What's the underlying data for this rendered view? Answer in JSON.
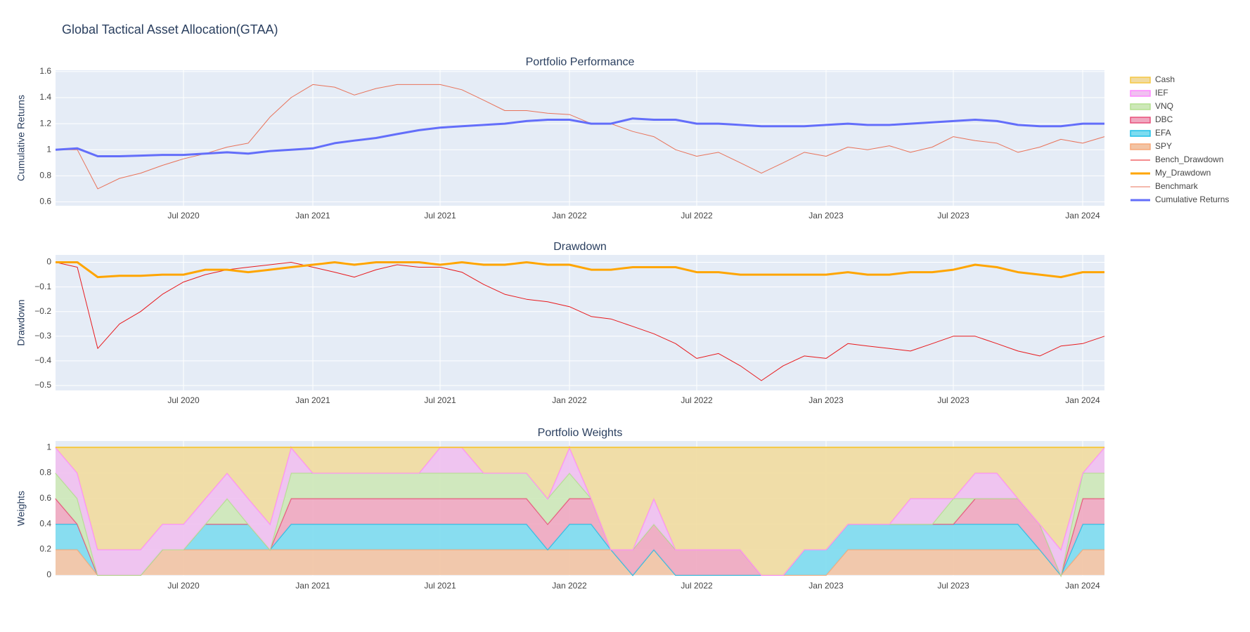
{
  "title": "Global Tactical Asset Allocation(GTAA)",
  "legend": "right",
  "chart_data": [
    {
      "type": "line",
      "title": "Portfolio Performance",
      "ylabel": "Cumulative Returns",
      "grid": true,
      "x": [
        "2020-01",
        "2020-02",
        "2020-03",
        "2020-04",
        "2020-05",
        "2020-06",
        "2020-07",
        "2020-08",
        "2020-09",
        "2020-10",
        "2020-11",
        "2020-12",
        "2021-01",
        "2021-02",
        "2021-03",
        "2021-04",
        "2021-05",
        "2021-06",
        "2021-07",
        "2021-08",
        "2021-09",
        "2021-10",
        "2021-11",
        "2021-12",
        "2022-01",
        "2022-02",
        "2022-03",
        "2022-04",
        "2022-05",
        "2022-06",
        "2022-07",
        "2022-08",
        "2022-09",
        "2022-10",
        "2022-11",
        "2022-12",
        "2023-01",
        "2023-02",
        "2023-03",
        "2023-04",
        "2023-05",
        "2023-06",
        "2023-07",
        "2023-08",
        "2023-09",
        "2023-10",
        "2023-11",
        "2023-12",
        "2024-01",
        "2024-02"
      ],
      "xlim": [
        "2020-01",
        "2024-02"
      ],
      "xticks": [
        {
          "value": "2020-07",
          "label": "Jul 2020"
        },
        {
          "value": "2021-01",
          "label": "Jan 2021"
        },
        {
          "value": "2021-07",
          "label": "Jul 2021"
        },
        {
          "value": "2022-01",
          "label": "Jan 2022"
        },
        {
          "value": "2022-07",
          "label": "Jul 2022"
        },
        {
          "value": "2023-01",
          "label": "Jan 2023"
        },
        {
          "value": "2023-07",
          "label": "Jul 2023"
        },
        {
          "value": "2024-01",
          "label": "Jan 2024"
        }
      ],
      "ylim": [
        0.57,
        1.61
      ],
      "yticks": [
        0.6,
        0.8,
        1,
        1.2,
        1.4,
        1.6
      ],
      "series": [
        {
          "name": "Benchmark",
          "color": "#e8735a",
          "width": 1,
          "values": [
            1.0,
            1.0,
            0.7,
            0.78,
            0.82,
            0.88,
            0.93,
            0.97,
            1.02,
            1.05,
            1.25,
            1.4,
            1.5,
            1.48,
            1.42,
            1.47,
            1.5,
            1.5,
            1.5,
            1.46,
            1.38,
            1.3,
            1.3,
            1.28,
            1.27,
            1.2,
            1.2,
            1.14,
            1.1,
            1.0,
            0.95,
            0.98,
            0.9,
            0.82,
            0.9,
            0.98,
            0.95,
            1.02,
            1.0,
            1.03,
            0.98,
            1.02,
            1.1,
            1.07,
            1.05,
            0.98,
            1.02,
            1.08,
            1.05,
            1.1
          ]
        },
        {
          "name": "Cumulative Returns",
          "color": "#636efa",
          "width": 3,
          "values": [
            1.0,
            1.01,
            0.95,
            0.95,
            0.955,
            0.96,
            0.96,
            0.97,
            0.98,
            0.97,
            0.99,
            1.0,
            1.01,
            1.05,
            1.07,
            1.09,
            1.12,
            1.15,
            1.17,
            1.18,
            1.19,
            1.2,
            1.22,
            1.23,
            1.23,
            1.2,
            1.2,
            1.24,
            1.23,
            1.23,
            1.2,
            1.2,
            1.19,
            1.18,
            1.18,
            1.18,
            1.19,
            1.2,
            1.19,
            1.19,
            1.2,
            1.21,
            1.22,
            1.23,
            1.22,
            1.19,
            1.18,
            1.18,
            1.2,
            1.2
          ]
        }
      ]
    },
    {
      "type": "line",
      "title": "Drawdown",
      "ylabel": "Drawdown",
      "grid": true,
      "x": [
        "2020-01",
        "2020-02",
        "2020-03",
        "2020-04",
        "2020-05",
        "2020-06",
        "2020-07",
        "2020-08",
        "2020-09",
        "2020-10",
        "2020-11",
        "2020-12",
        "2021-01",
        "2021-02",
        "2021-03",
        "2021-04",
        "2021-05",
        "2021-06",
        "2021-07",
        "2021-08",
        "2021-09",
        "2021-10",
        "2021-11",
        "2021-12",
        "2022-01",
        "2022-02",
        "2022-03",
        "2022-04",
        "2022-05",
        "2022-06",
        "2022-07",
        "2022-08",
        "2022-09",
        "2022-10",
        "2022-11",
        "2022-12",
        "2023-01",
        "2023-02",
        "2023-03",
        "2023-04",
        "2023-05",
        "2023-06",
        "2023-07",
        "2023-08",
        "2023-09",
        "2023-10",
        "2023-11",
        "2023-12",
        "2024-01",
        "2024-02"
      ],
      "xlim": [
        "2020-01",
        "2024-02"
      ],
      "xticks": [
        {
          "value": "2020-07",
          "label": "Jul 2020"
        },
        {
          "value": "2021-01",
          "label": "Jan 2021"
        },
        {
          "value": "2021-07",
          "label": "Jul 2021"
        },
        {
          "value": "2022-01",
          "label": "Jan 2022"
        },
        {
          "value": "2022-07",
          "label": "Jul 2022"
        },
        {
          "value": "2023-01",
          "label": "Jan 2023"
        },
        {
          "value": "2023-07",
          "label": "Jul 2023"
        },
        {
          "value": "2024-01",
          "label": "Jan 2024"
        }
      ],
      "ylim": [
        -0.52,
        0.03
      ],
      "yticks": [
        0,
        {
          "value": -0.1,
          "label": "−0.1"
        },
        {
          "value": -0.2,
          "label": "−0.2"
        },
        {
          "value": -0.3,
          "label": "−0.3"
        },
        {
          "value": -0.4,
          "label": "−0.4"
        },
        {
          "value": -0.5,
          "label": "−0.5"
        }
      ],
      "series": [
        {
          "name": "Bench_Drawdown",
          "color": "#e8191c",
          "width": 1,
          "values": [
            0,
            -0.02,
            -0.35,
            -0.25,
            -0.2,
            -0.13,
            -0.08,
            -0.05,
            -0.03,
            -0.02,
            -0.01,
            0,
            -0.02,
            -0.04,
            -0.06,
            -0.03,
            -0.01,
            -0.02,
            -0.02,
            -0.04,
            -0.09,
            -0.13,
            -0.15,
            -0.16,
            -0.18,
            -0.22,
            -0.23,
            -0.26,
            -0.29,
            -0.33,
            -0.39,
            -0.37,
            -0.42,
            -0.48,
            -0.42,
            -0.38,
            -0.39,
            -0.33,
            -0.34,
            -0.35,
            -0.36,
            -0.33,
            -0.3,
            -0.3,
            -0.33,
            -0.36,
            -0.38,
            -0.34,
            -0.33,
            -0.3
          ]
        },
        {
          "name": "My_Drawdown",
          "color": "#ffa500",
          "width": 3,
          "values": [
            0,
            0,
            -0.06,
            -0.055,
            -0.055,
            -0.05,
            -0.05,
            -0.03,
            -0.03,
            -0.04,
            -0.03,
            -0.02,
            -0.01,
            0,
            -0.01,
            0,
            0,
            0,
            -0.01,
            0,
            -0.01,
            -0.01,
            0,
            -0.01,
            -0.01,
            -0.03,
            -0.03,
            -0.02,
            -0.02,
            -0.02,
            -0.04,
            -0.04,
            -0.05,
            -0.05,
            -0.05,
            -0.05,
            -0.05,
            -0.04,
            -0.05,
            -0.05,
            -0.04,
            -0.04,
            -0.03,
            -0.01,
            -0.02,
            -0.04,
            -0.05,
            -0.06,
            -0.04,
            -0.04
          ]
        }
      ]
    },
    {
      "type": "stacked_area",
      "title": "Portfolio Weights",
      "ylabel": "Weights",
      "grid": true,
      "x": [
        "2020-01",
        "2020-02",
        "2020-03",
        "2020-04",
        "2020-05",
        "2020-06",
        "2020-07",
        "2020-08",
        "2020-09",
        "2020-10",
        "2020-11",
        "2020-12",
        "2021-01",
        "2021-02",
        "2021-03",
        "2021-04",
        "2021-05",
        "2021-06",
        "2021-07",
        "2021-08",
        "2021-09",
        "2021-10",
        "2021-11",
        "2021-12",
        "2022-01",
        "2022-02",
        "2022-03",
        "2022-04",
        "2022-05",
        "2022-06",
        "2022-07",
        "2022-08",
        "2022-09",
        "2022-10",
        "2022-11",
        "2022-12",
        "2023-01",
        "2023-02",
        "2023-03",
        "2023-04",
        "2023-05",
        "2023-06",
        "2023-07",
        "2023-08",
        "2023-09",
        "2023-10",
        "2023-11",
        "2023-12",
        "2024-01",
        "2024-02"
      ],
      "xlim": [
        "2020-01",
        "2024-02"
      ],
      "xticks": [
        {
          "value": "2020-07",
          "label": "Jul 2020"
        },
        {
          "value": "2021-01",
          "label": "Jan 2021"
        },
        {
          "value": "2021-07",
          "label": "Jul 2021"
        },
        {
          "value": "2022-01",
          "label": "Jan 2022"
        },
        {
          "value": "2022-07",
          "label": "Jul 2022"
        },
        {
          "value": "2023-01",
          "label": "Jan 2023"
        },
        {
          "value": "2023-07",
          "label": "Jul 2023"
        },
        {
          "value": "2024-01",
          "label": "Jan 2024"
        }
      ],
      "ylim": [
        -0.006,
        1.05
      ],
      "yticks": [
        0,
        0.2,
        0.4,
        0.6,
        0.8,
        1
      ],
      "series": [
        {
          "name": "SPY",
          "color": "#f8a878",
          "fill": "#f2c4a4",
          "values": [
            0.2,
            0.2,
            0,
            0,
            0,
            0.2,
            0.2,
            0.2,
            0.2,
            0.2,
            0.2,
            0.2,
            0.2,
            0.2,
            0.2,
            0.2,
            0.2,
            0.2,
            0.2,
            0.2,
            0.2,
            0.2,
            0.2,
            0.2,
            0.2,
            0.2,
            0.2,
            0,
            0.2,
            0,
            0,
            0,
            0,
            0,
            0,
            0,
            0,
            0.2,
            0.2,
            0.2,
            0.2,
            0.2,
            0.2,
            0.2,
            0.2,
            0.2,
            0.2,
            0,
            0.2,
            0.2
          ]
        },
        {
          "name": "EFA",
          "color": "#20c0e8",
          "fill": "#7ddcf0",
          "values": [
            0.2,
            0.2,
            0,
            0,
            0,
            0,
            0,
            0.2,
            0.2,
            0.2,
            0,
            0.2,
            0.2,
            0.2,
            0.2,
            0.2,
            0.2,
            0.2,
            0.2,
            0.2,
            0.2,
            0.2,
            0.2,
            0,
            0.2,
            0.2,
            0,
            0,
            0,
            0,
            0,
            0,
            0,
            0,
            0,
            0.2,
            0.2,
            0.2,
            0.2,
            0.2,
            0.2,
            0.2,
            0.2,
            0.2,
            0.2,
            0.2,
            0,
            0,
            0.2,
            0.2
          ]
        },
        {
          "name": "DBC",
          "color": "#e8507a",
          "fill": "#f0a8c0",
          "values": [
            0.2,
            0,
            0,
            0,
            0,
            0,
            0,
            0,
            0,
            0,
            0,
            0.2,
            0.2,
            0.2,
            0.2,
            0.2,
            0.2,
            0.2,
            0.2,
            0.2,
            0.2,
            0.2,
            0.2,
            0.2,
            0.2,
            0.2,
            0,
            0.2,
            0.2,
            0.2,
            0.2,
            0.2,
            0.2,
            0,
            0,
            0,
            0,
            0,
            0,
            0,
            0,
            0,
            0,
            0.2,
            0.2,
            0.2,
            0.2,
            0,
            0.2,
            0.2
          ]
        },
        {
          "name": "VNQ",
          "color": "#b3e08f",
          "fill": "#cde8b8",
          "values": [
            0.2,
            0.2,
            0,
            0,
            0,
            0,
            0,
            0,
            0.2,
            0,
            0,
            0.2,
            0.2,
            0.2,
            0.2,
            0.2,
            0.2,
            0.2,
            0.2,
            0.2,
            0.2,
            0.2,
            0.2,
            0.2,
            0.2,
            0,
            0,
            0,
            0,
            0,
            0,
            0,
            0,
            0,
            0,
            0,
            0,
            0,
            0,
            0,
            0,
            0,
            0.2,
            0,
            0,
            0,
            0,
            0,
            0.2,
            0.2
          ]
        },
        {
          "name": "IEF",
          "color": "#ff88ff",
          "fill": "#f0c0f0",
          "values": [
            0.2,
            0.2,
            0.2,
            0.2,
            0.2,
            0.2,
            0.2,
            0.2,
            0.2,
            0.2,
            0.2,
            0.2,
            0,
            0,
            0,
            0,
            0,
            0,
            0.2,
            0.2,
            0,
            0,
            0,
            0,
            0.2,
            0,
            0,
            0,
            0.2,
            0,
            0,
            0,
            0,
            0,
            0,
            0,
            0,
            0,
            0,
            0,
            0.2,
            0.2,
            0,
            0.2,
            0.2,
            0,
            0,
            0.2,
            0,
            0.2
          ]
        },
        {
          "name": "Cash",
          "color": "#f5c842",
          "fill": "#f1dba0",
          "values": [
            0,
            0.2,
            0.8,
            0.8,
            0.8,
            0.6,
            0.6,
            0.4,
            0.2,
            0.4,
            0.6,
            0,
            0.2,
            0.2,
            0.2,
            0.2,
            0.2,
            0.2,
            0,
            0,
            0.2,
            0.2,
            0.2,
            0.4,
            0,
            0.4,
            0.8,
            0.8,
            0.4,
            0.8,
            0.8,
            0.8,
            0.8,
            1,
            1,
            0.8,
            0.8,
            0.6,
            0.6,
            0.6,
            0.4,
            0.4,
            0.4,
            0.2,
            0.2,
            0.4,
            0.6,
            0.8,
            0.2,
            0
          ]
        }
      ]
    }
  ]
}
